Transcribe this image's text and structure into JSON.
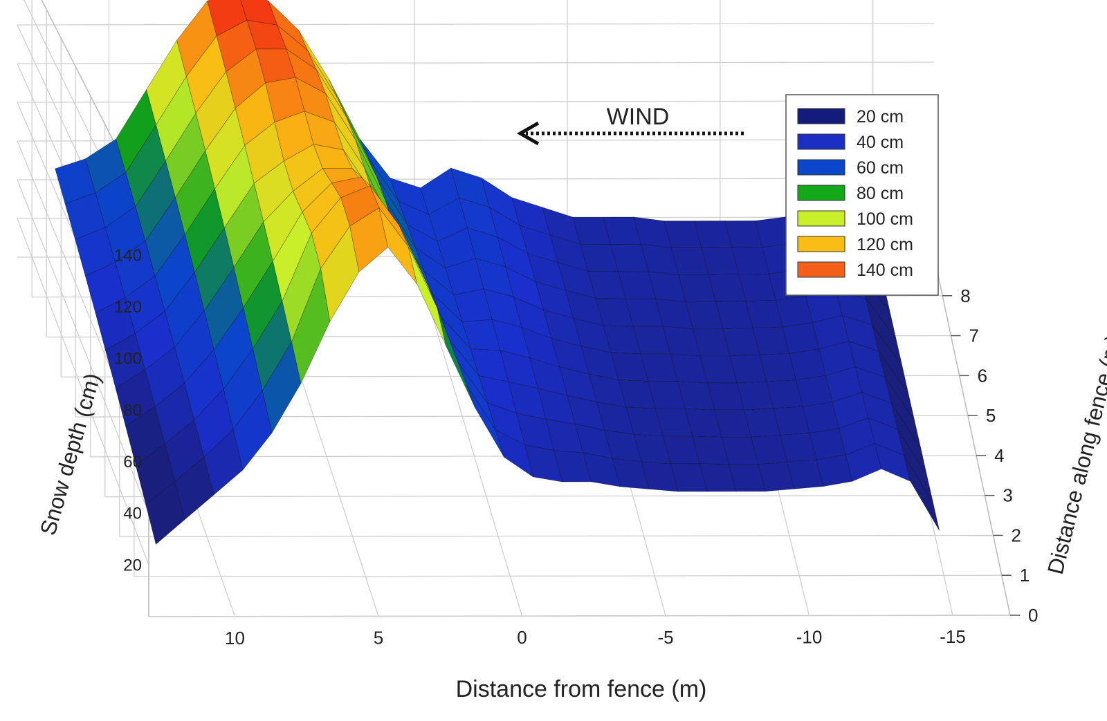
{
  "chart_data": {
    "type": "surface",
    "title": "",
    "xlabel": "Distance from fence (m)",
    "ylabel": "Distance along fence (m)",
    "zlabel": "Snow depth (cm)",
    "xlim": [
      13,
      -17
    ],
    "ylim": [
      0,
      9
    ],
    "zlim": [
      0,
      150
    ],
    "x_ticks": [
      10,
      5,
      0,
      -5,
      -10,
      -15
    ],
    "y_ticks": [
      0,
      1,
      2,
      3,
      4,
      5,
      6,
      7,
      8
    ],
    "z_ticks": [
      20,
      40,
      60,
      80,
      100,
      120,
      140
    ],
    "grid": true,
    "annotation": "WIND",
    "wind_direction": "toward +x (right to left)",
    "legend_position": "top-right",
    "legend": [
      {
        "label": "20 cm",
        "color": "#131c7a"
      },
      {
        "label": "40 cm",
        "color": "#1b2fc4"
      },
      {
        "label": "60 cm",
        "color": "#0a46c9"
      },
      {
        "label": "80 cm",
        "color": "#13a81a"
      },
      {
        "label": "100 cm",
        "color": "#c9ef2a"
      },
      {
        "label": "120 cm",
        "color": "#f9bd13"
      },
      {
        "label": "140 cm",
        "color": "#f4601a"
      }
    ],
    "surface_profile": {
      "x": [
        12.0,
        11.0,
        10.0,
        9.0,
        8.0,
        7.0,
        6.0,
        5.0,
        4.0,
        3.0,
        2.0,
        1.0,
        0.0,
        -1.0,
        -2.0,
        -3.0,
        -4.0,
        -5.0,
        -6.0,
        -7.0,
        -8.0,
        -9.0,
        -10.0,
        -11.0,
        -12.0,
        -13.0,
        -14.0,
        -15.0
      ],
      "depth_cm_near_fence_line": [
        5,
        15,
        25,
        35,
        50,
        70,
        95,
        115,
        125,
        110,
        85,
        60,
        40,
        32,
        30,
        30,
        28,
        27,
        26,
        26,
        26,
        26,
        27,
        28,
        30,
        35,
        30,
        10
      ],
      "depth_cm_far_edge": [
        55,
        60,
        70,
        95,
        120,
        140,
        145,
        140,
        125,
        100,
        70,
        50,
        45,
        55,
        50,
        40,
        35,
        30,
        30,
        30,
        28,
        28,
        28,
        28,
        30,
        32,
        28,
        10
      ]
    }
  }
}
